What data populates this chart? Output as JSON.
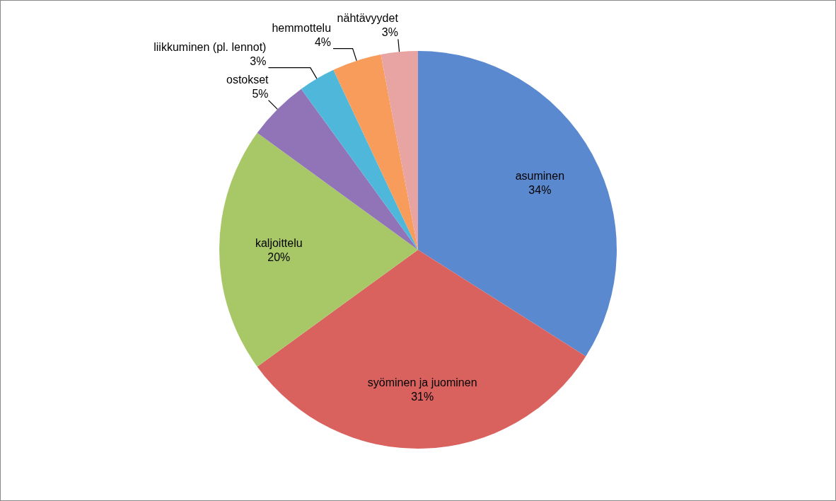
{
  "chart_data": {
    "type": "pie",
    "categories": [
      "asuminen",
      "syöminen ja juominen",
      "kaljoittelu",
      "ostokset",
      "liikkuminen (pl. lennot)",
      "hemmottelu",
      "nähtävyydet"
    ],
    "values": [
      34,
      31,
      20,
      5,
      3,
      4,
      3
    ],
    "value_labels": [
      "34%",
      "31%",
      "20%",
      "5%",
      "3%",
      "4%",
      "3%"
    ],
    "colors": [
      "#5b89d0",
      "#d9625f",
      "#a8c868",
      "#9174b8",
      "#4fb8da",
      "#f79c5a",
      "#e8a3a3"
    ]
  }
}
